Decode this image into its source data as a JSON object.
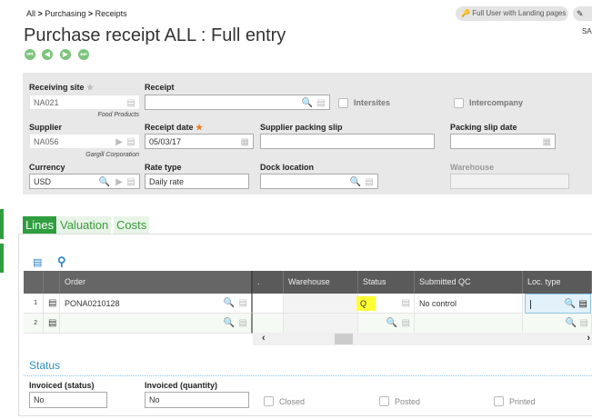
{
  "breadcrumb": [
    "All",
    "Purchasing",
    "Receipts"
  ],
  "breadcrumb_sep": ">",
  "header": {
    "title": "Purchase receipt ALL : Full entry",
    "user_button": "Full User with Landing pages",
    "user_short": "SA"
  },
  "form": {
    "receiving_site": {
      "label": "Receiving site",
      "value": "NA021",
      "caption": "Food Products"
    },
    "receipt": {
      "label": "Receipt",
      "value": ""
    },
    "intersites": {
      "label": "Intersites",
      "checked": false
    },
    "intercompany": {
      "label": "Intercompany",
      "checked": false
    },
    "supplier": {
      "label": "Supplier",
      "value": "NA056",
      "caption": "Gargill Corporation"
    },
    "receipt_date": {
      "label": "Receipt date",
      "value": "05/03/17",
      "required_mark": "★"
    },
    "supplier_packing_slip": {
      "label": "Supplier packing slip",
      "value": ""
    },
    "packing_slip_date": {
      "label": "Packing slip date",
      "value": ""
    },
    "currency": {
      "label": "Currency",
      "value": "USD"
    },
    "rate_type": {
      "label": "Rate type",
      "value": "Daily rate"
    },
    "dock_location": {
      "label": "Dock location",
      "value": ""
    },
    "warehouse": {
      "label": "Warehouse",
      "value": ""
    }
  },
  "tabs": [
    {
      "label": "Lines",
      "active": true
    },
    {
      "label": "Valuation"
    },
    {
      "label": "Costs"
    }
  ],
  "grid": {
    "columns": [
      "Order",
      ".",
      "Warehouse",
      "Status",
      "Submitted QC",
      "Loc. type"
    ],
    "rows": [
      {
        "num": "1",
        "order": "PONA0210128",
        "warehouse": "",
        "status": "Q",
        "submitted_qc": "No control",
        "loc_type": ""
      },
      {
        "num": "2",
        "order": "",
        "warehouse": "",
        "status": "",
        "submitted_qc": "",
        "loc_type": ""
      }
    ]
  },
  "status_section": {
    "title": "Status",
    "invoiced_status": {
      "label": "Invoiced (status)",
      "value": "No"
    },
    "invoiced_quantity": {
      "label": "Invoiced (quantity)",
      "value": "No"
    },
    "closed": {
      "label": "Closed",
      "checked": false
    },
    "posted": {
      "label": "Posted",
      "checked": false
    },
    "printed": {
      "label": "Printed",
      "checked": false
    }
  },
  "colors": {
    "accent": "#2e9e3e",
    "grid_header": "#5a5a5a",
    "highlight": "#ffff33",
    "section_title": "#2f8fbf"
  }
}
